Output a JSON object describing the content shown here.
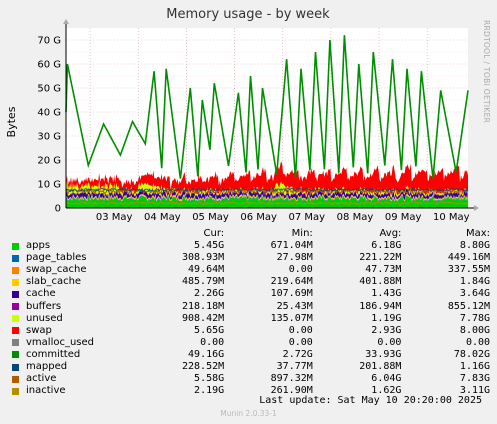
{
  "colors": {
    "apps": "#00cc00",
    "page_tables": "#0066b3",
    "swap_cache": "#ff8000",
    "slab_cache": "#ffcc00",
    "cache": "#330099",
    "buffers": "#990099",
    "unused": "#ccff00",
    "swap": "#ff0000",
    "vmalloc_used": "#808080",
    "committed": "#008f00",
    "mapped": "#00487d",
    "active": "#b35a00",
    "inactive": "#b38f00"
  },
  "chart_data": {
    "type": "area",
    "title": "Memory usage - by week",
    "ylabel": "Bytes",
    "side_label": "RRDTOOL / TOBI OETIKER",
    "ylim": [
      0,
      75
    ],
    "y_unit": "G",
    "y_ticks": [
      "0",
      "10 G",
      "20 G",
      "30 G",
      "40 G",
      "50 G",
      "60 G",
      "70 G"
    ],
    "y_tick_values": [
      0,
      10,
      20,
      30,
      40,
      50,
      60,
      70
    ],
    "x_range": [
      "2025-05-02T12:00",
      "2025-05-10T20:20"
    ],
    "x_ticks": [
      "03 May",
      "04 May",
      "05 May",
      "06 May",
      "07 May",
      "08 May",
      "09 May",
      "10 May"
    ],
    "x_tick_days": [
      3,
      4,
      5,
      6,
      7,
      8,
      9,
      10
    ],
    "committed_peaks": [
      {
        "day": 2.55,
        "value": 60
      },
      {
        "day": 3.3,
        "value": 35
      },
      {
        "day": 3.9,
        "value": 36
      },
      {
        "day": 4.35,
        "value": 57
      },
      {
        "day": 4.6,
        "value": 58
      },
      {
        "day": 5.1,
        "value": 50
      },
      {
        "day": 5.35,
        "value": 45
      },
      {
        "day": 5.6,
        "value": 52
      },
      {
        "day": 6.1,
        "value": 48
      },
      {
        "day": 6.35,
        "value": 55
      },
      {
        "day": 6.6,
        "value": 50
      },
      {
        "day": 7.1,
        "value": 62
      },
      {
        "day": 7.4,
        "value": 58
      },
      {
        "day": 7.7,
        "value": 65
      },
      {
        "day": 8.0,
        "value": 70
      },
      {
        "day": 8.3,
        "value": 72
      },
      {
        "day": 8.6,
        "value": 60
      },
      {
        "day": 8.9,
        "value": 65
      },
      {
        "day": 9.3,
        "value": 62
      },
      {
        "day": 9.6,
        "value": 58
      },
      {
        "day": 9.9,
        "value": 57
      },
      {
        "day": 10.3,
        "value": 49
      }
    ],
    "series": [
      {
        "name": "apps",
        "cur": "5.45G",
        "min": "671.04M",
        "avg": "6.18G",
        "max": "8.80G"
      },
      {
        "name": "page_tables",
        "cur": "308.93M",
        "min": "27.98M",
        "avg": "221.22M",
        "max": "449.16M"
      },
      {
        "name": "swap_cache",
        "cur": "49.64M",
        "min": "0.00",
        "avg": "47.73M",
        "max": "337.55M"
      },
      {
        "name": "slab_cache",
        "cur": "485.79M",
        "min": "219.64M",
        "avg": "401.88M",
        "max": "1.84G"
      },
      {
        "name": "cache",
        "cur": "2.26G",
        "min": "107.69M",
        "avg": "1.43G",
        "max": "3.64G"
      },
      {
        "name": "buffers",
        "cur": "218.18M",
        "min": "25.43M",
        "avg": "186.94M",
        "max": "855.12M"
      },
      {
        "name": "unused",
        "cur": "908.42M",
        "min": "135.07M",
        "avg": "1.19G",
        "max": "7.78G"
      },
      {
        "name": "swap",
        "cur": "5.65G",
        "min": "0.00",
        "avg": "2.93G",
        "max": "8.00G"
      },
      {
        "name": "vmalloc_used",
        "cur": "0.00",
        "min": "0.00",
        "avg": "0.00",
        "max": "0.00"
      },
      {
        "name": "committed",
        "cur": "49.16G",
        "min": "2.72G",
        "avg": "33.93G",
        "max": "78.02G"
      },
      {
        "name": "mapped",
        "cur": "228.52M",
        "min": "37.77M",
        "avg": "201.88M",
        "max": "1.16G"
      },
      {
        "name": "active",
        "cur": "5.58G",
        "min": "897.32M",
        "avg": "6.04G",
        "max": "7.83G"
      },
      {
        "name": "inactive",
        "cur": "2.19G",
        "min": "261.90M",
        "avg": "1.62G",
        "max": "3.11G"
      }
    ]
  },
  "legend_header": {
    "cur": "Cur:",
    "min": "Min:",
    "avg": "Avg:",
    "max": "Max:"
  },
  "last_update": "Last update:  Sat May 10 20:20:00 2025",
  "footer": "Munin 2.0.33-1"
}
